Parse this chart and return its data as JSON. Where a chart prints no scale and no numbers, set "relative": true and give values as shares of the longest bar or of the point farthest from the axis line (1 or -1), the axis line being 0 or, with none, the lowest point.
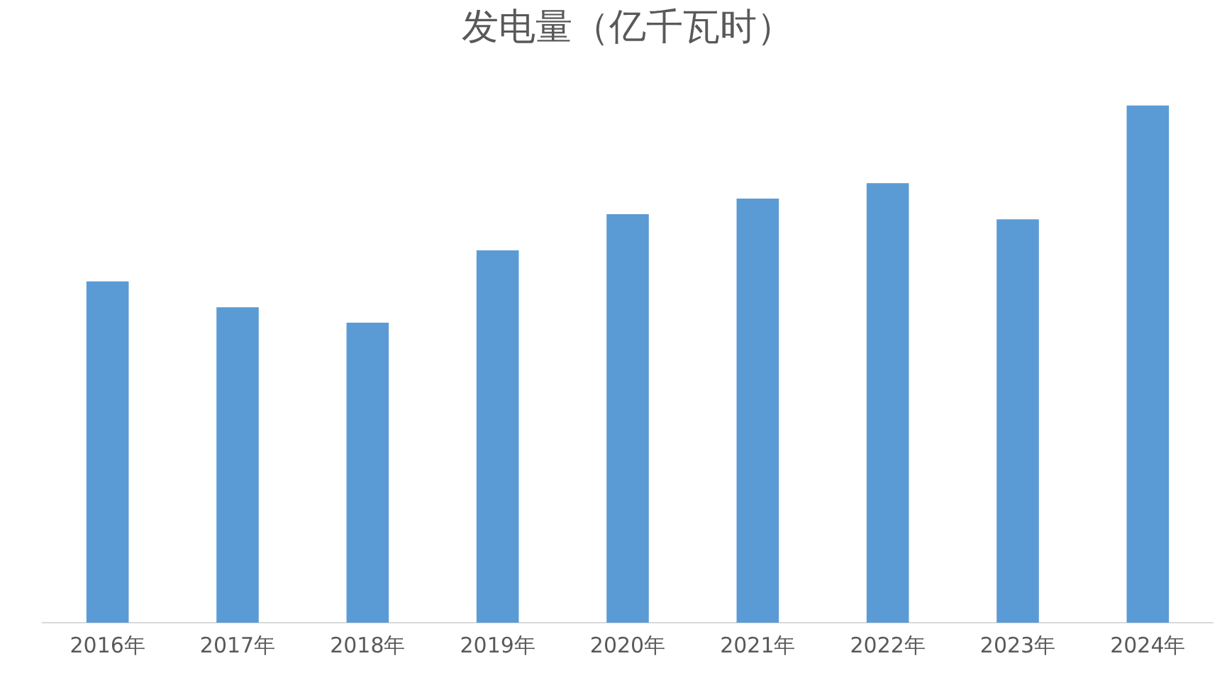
{
  "chart_data": {
    "type": "bar",
    "title": "发电量（亿千瓦时）",
    "relative": true,
    "categories": [
      "2016年",
      "2017年",
      "2018年",
      "2019年",
      "2020年",
      "2021年",
      "2022年",
      "2023年",
      "2024年"
    ],
    "values": [
      0.66,
      0.61,
      0.58,
      0.72,
      0.79,
      0.82,
      0.85,
      0.78,
      1
    ],
    "color": "#5b9bd5"
  }
}
